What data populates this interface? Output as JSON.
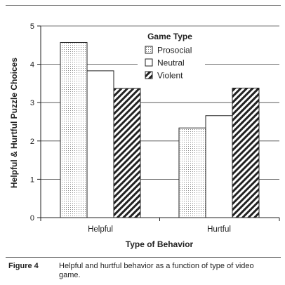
{
  "chart_data": {
    "type": "bar",
    "categories": [
      "Helpful",
      "Hurtful"
    ],
    "series": [
      {
        "name": "Prosocial",
        "values": [
          4.57,
          2.34
        ],
        "pattern": "dots"
      },
      {
        "name": "Neutral",
        "values": [
          3.83,
          2.66
        ],
        "pattern": "none"
      },
      {
        "name": "Violent",
        "values": [
          3.37,
          3.38
        ],
        "pattern": "diagonal"
      }
    ],
    "ylim": [
      0,
      5
    ],
    "yticks": [
      "0",
      "1",
      "2",
      "3",
      "4",
      "5"
    ],
    "xlabel": "Type of Behavior",
    "ylabel": "Helpful & Hurtful Puzzle Choices",
    "legend_title": "Game Type",
    "legend_position": "top-right",
    "grid": true
  },
  "caption": {
    "label": "Figure 4",
    "text": "Helpful and hurtful behavior as a function of type of video game."
  }
}
